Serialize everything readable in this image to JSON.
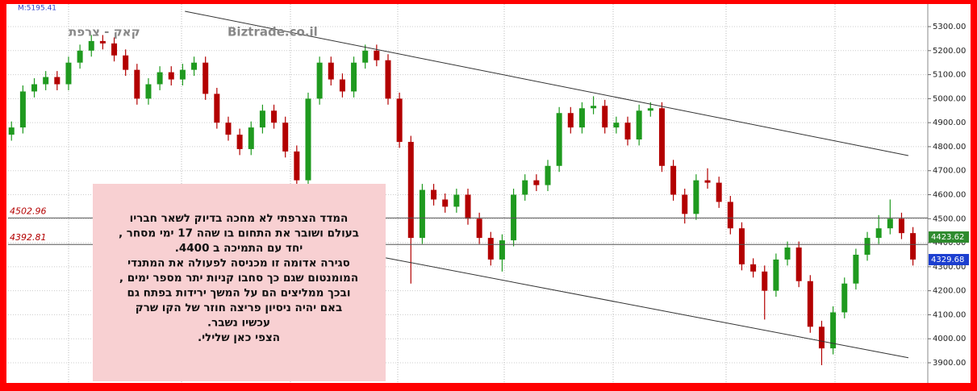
{
  "chart_data": {
    "type": "candlestick",
    "title": "קאק - צרפת",
    "subtitle": "Biztrade.co.il",
    "corner_label": "M:5195.41",
    "up_color": "#1f9a1f",
    "down_color": "#b30000",
    "open": [
      4850,
      4880,
      5030,
      5060,
      5090,
      5060,
      5150,
      5200,
      5240,
      5230,
      5180,
      5120,
      5000,
      5060,
      5110,
      5080,
      5120,
      5150,
      5020,
      4900,
      4850,
      4790,
      4880,
      4950,
      4900,
      4780,
      4660,
      5000,
      5150,
      5080,
      5030,
      5150,
      5200,
      5160,
      5000,
      4820,
      4420,
      4620,
      4580,
      4550,
      4600,
      4500,
      4420,
      4330,
      4410,
      4600,
      4660,
      4640,
      4720,
      4940,
      4880,
      4960,
      4970,
      4880,
      4900,
      4830,
      4950,
      4960,
      4720,
      4600,
      4520,
      4660,
      4650,
      4570,
      4460,
      4310,
      4280,
      4200,
      4330,
      4380,
      4240,
      4050,
      3960,
      4110,
      4230,
      4350,
      4420,
      4460,
      4500,
      4440
    ],
    "high": [
      4905,
      5055,
      5085,
      5115,
      5115,
      5175,
      5225,
      5265,
      5265,
      5255,
      5205,
      5145,
      5085,
      5135,
      5135,
      5145,
      5175,
      5175,
      5045,
      4925,
      4875,
      4905,
      4975,
      4975,
      4925,
      4805,
      5025,
      5175,
      5175,
      5105,
      5175,
      5225,
      5225,
      5185,
      5025,
      4845,
      4645,
      4645,
      4605,
      4625,
      4625,
      4525,
      4445,
      4435,
      4625,
      4685,
      4685,
      4745,
      4965,
      4965,
      4985,
      5010,
      4995,
      4925,
      4925,
      4975,
      4985,
      4985,
      4745,
      4625,
      4685,
      4710,
      4675,
      4595,
      4485,
      4335,
      4305,
      4355,
      4405,
      4405,
      4265,
      4075,
      4135,
      4255,
      4375,
      4445,
      4515,
      4580,
      4525,
      4465
    ],
    "low": [
      4825,
      4855,
      5005,
      5035,
      5035,
      5035,
      5125,
      5175,
      5205,
      5155,
      5095,
      4975,
      4975,
      5035,
      5055,
      5055,
      5095,
      4995,
      4875,
      4825,
      4765,
      4765,
      4855,
      4875,
      4755,
      4635,
      4635,
      4975,
      5055,
      5005,
      5005,
      5125,
      5135,
      4975,
      4795,
      4230,
      4395,
      4555,
      4525,
      4525,
      4475,
      4395,
      4305,
      4280,
      4385,
      4575,
      4615,
      4615,
      4695,
      4855,
      4855,
      4935,
      4855,
      4855,
      4805,
      4805,
      4925,
      4695,
      4575,
      4480,
      4495,
      4625,
      4545,
      4435,
      4285,
      4255,
      4080,
      4175,
      4305,
      4215,
      4025,
      3890,
      3935,
      4085,
      4205,
      4325,
      4395,
      4435,
      4415,
      4305
    ],
    "close": [
      4880,
      5030,
      5060,
      5090,
      5060,
      5150,
      5200,
      5240,
      5230,
      5180,
      5120,
      5000,
      5060,
      5110,
      5080,
      5120,
      5150,
      5020,
      4900,
      4850,
      4790,
      4880,
      4950,
      4900,
      4780,
      4660,
      5000,
      5150,
      5080,
      5030,
      5150,
      5200,
      5160,
      5000,
      4820,
      4420,
      4620,
      4580,
      4550,
      4600,
      4500,
      4420,
      4330,
      4410,
      4600,
      4660,
      4640,
      4720,
      4940,
      4880,
      4960,
      4970,
      4880,
      4900,
      4830,
      4950,
      4960,
      4720,
      4600,
      4520,
      4660,
      4650,
      4570,
      4460,
      4310,
      4280,
      4200,
      4330,
      4380,
      4240,
      4050,
      3960,
      4110,
      4230,
      4350,
      4420,
      4460,
      4500,
      4440,
      4330
    ],
    "xlim": [
      -0.3,
      80.3
    ],
    "ylim": [
      3816,
      5384
    ],
    "yticks": [
      {
        "value": 3900,
        "label": "3900.00"
      },
      {
        "value": 4000,
        "label": "4000.00"
      },
      {
        "value": 4100,
        "label": "4100.00"
      },
      {
        "value": 4200,
        "label": "4200.00"
      },
      {
        "value": 4300,
        "label": "4300.00"
      },
      {
        "value": 4400,
        "label": "4400.00"
      },
      {
        "value": 4500,
        "label": "4500.00"
      },
      {
        "value": 4600,
        "label": "4600.00"
      },
      {
        "value": 4700,
        "label": "4700.00"
      },
      {
        "value": 4800,
        "label": "4800.00"
      },
      {
        "value": 4900,
        "label": "4900.00"
      },
      {
        "value": 5000,
        "label": "5000.00"
      },
      {
        "value": 5100,
        "label": "5100.00"
      },
      {
        "value": 5200,
        "label": "5200.00"
      },
      {
        "value": 5300,
        "label": "5300.00"
      }
    ],
    "levels": [
      {
        "value": 4502.96,
        "color": "#b30000"
      },
      {
        "value": 4392.81,
        "color": "#b30000"
      }
    ],
    "price_markers": [
      {
        "value": 4423.62,
        "color": "#2e8b2e"
      },
      {
        "value": 4329.68,
        "color": "#1c3fd0"
      }
    ],
    "trendlines": [
      {
        "x": [
          15.2,
          78.6
        ],
        "y": [
          5364,
          4763
        ]
      },
      {
        "x": [
          32.8,
          78.6
        ],
        "y": [
          4337,
          3921
        ]
      }
    ],
    "annotation": [
      "המדד הצרפתי לא מחכה בדיוק לשאר חבריו",
      "בעולם ושובר את התחום בו שהה 17 ימי מסחר ,",
      "יחד עם התמיכה ב 4400.",
      "סגירה אדומה זו מכניסה לפעולה את המתנדי",
      "המומנטום שגם כך סחבו קניות יתר מספר ימים ,",
      "ובכך ממליצים הם על המשך ירידות בפתח גם",
      "באם יהיה ניסיון פריצה חוזר של הקו שרק",
      "עכשיו נשבר.",
      "הצפי כאן שלילי."
    ]
  }
}
